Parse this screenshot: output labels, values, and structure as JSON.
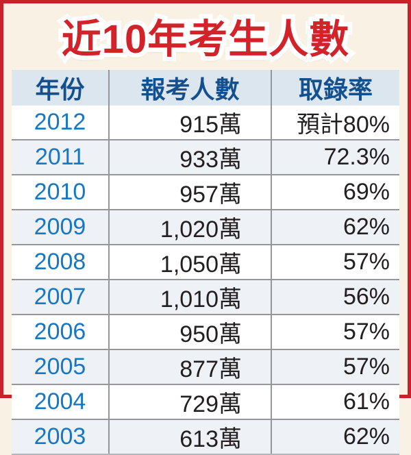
{
  "title": "近10年考生人數",
  "chart_data": {
    "type": "table",
    "title": "近10年考生人數",
    "columns": [
      "年份",
      "報考人數",
      "取錄率"
    ],
    "rows": [
      [
        "2012",
        "915萬",
        "預計80%"
      ],
      [
        "2011",
        "933萬",
        "72.3%"
      ],
      [
        "2010",
        "957萬",
        "69%"
      ],
      [
        "2009",
        "1,020萬",
        "62%"
      ],
      [
        "2008",
        "1,050萬",
        "57%"
      ],
      [
        "2007",
        "1,010萬",
        "56%"
      ],
      [
        "2006",
        "950萬",
        "57%"
      ],
      [
        "2005",
        "877萬",
        "57%"
      ],
      [
        "2004",
        "729萬",
        "61%"
      ],
      [
        "2003",
        "613萬",
        "62%"
      ]
    ]
  },
  "colors": {
    "page_bg": "#f9f2e4",
    "border_red": "#c9202a",
    "title_red": "#d2232a",
    "header_bg": "#dce6ef",
    "header_text": "#13508f",
    "year_blue": "#1777c3",
    "body_text": "#231f20",
    "row_alt": "#eef1f6",
    "grid_line": "#94969a"
  }
}
